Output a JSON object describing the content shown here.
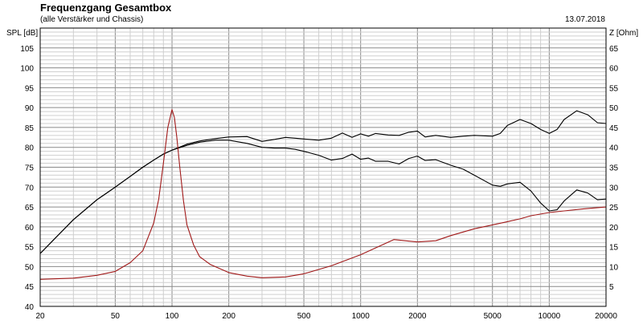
{
  "chart_data": {
    "type": "line",
    "title": "Frequenzgang Gesamtbox",
    "subtitle": "(alle Verstärker und Chassis)",
    "date": "13.07.2018",
    "ylabel": "SPL [dB]",
    "y2label": "Z [Ohm]",
    "x_scale": "log",
    "xlim": [
      20,
      20000
    ],
    "ylim": [
      40,
      110
    ],
    "y2lim": [
      0,
      70
    ],
    "x_ticks": [
      20,
      50,
      100,
      200,
      500,
      1000,
      2000,
      5000,
      10000,
      20000
    ],
    "x_tick_labels": [
      "20",
      "50",
      "100",
      "200",
      "500",
      "1000",
      "2000",
      "5000",
      "10000",
      "20000"
    ],
    "y_ticks": [
      40,
      45,
      50,
      55,
      60,
      65,
      70,
      75,
      80,
      85,
      90,
      95,
      100,
      105
    ],
    "y2_ticks": [
      5,
      10,
      15,
      20,
      25,
      30,
      35,
      40,
      45,
      50,
      55,
      60,
      65
    ],
    "grid": true,
    "colors": {
      "spl": "#000000",
      "impedance": "#a01818"
    },
    "series": [
      {
        "axis": "left",
        "color": "#000000",
        "x": [
          20,
          30,
          40,
          50,
          60,
          70,
          80,
          90,
          100,
          120,
          140,
          170,
          200,
          250,
          300,
          350,
          400,
          450,
          500,
          600,
          700,
          800,
          900,
          1000,
          1100,
          1200,
          1400,
          1600,
          1800,
          2000,
          2200,
          2500,
          3000,
          3500,
          4000,
          5000,
          5500,
          6000,
          7000,
          8000,
          9000,
          10000,
          11000,
          12000,
          14000,
          16000,
          18000,
          20000
        ],
        "y": [
          53.3,
          61.8,
          66.8,
          70.0,
          72.7,
          75.0,
          76.8,
          78.3,
          79.3,
          80.8,
          81.6,
          82.2,
          82.6,
          82.7,
          81.5,
          82.0,
          82.5,
          82.3,
          82.1,
          81.8,
          82.3,
          83.6,
          82.5,
          83.4,
          82.8,
          83.5,
          83.1,
          83.0,
          83.8,
          84.1,
          82.6,
          83.0,
          82.5,
          82.8,
          83.0,
          82.8,
          83.5,
          85.5,
          87.0,
          86.0,
          84.5,
          83.5,
          84.5,
          87.0,
          89.2,
          88.2,
          86.2,
          86.0
        ]
      },
      {
        "axis": "left",
        "color": "#000000",
        "x": [
          20,
          30,
          40,
          50,
          60,
          70,
          80,
          90,
          100,
          120,
          140,
          170,
          200,
          250,
          300,
          350,
          400,
          450,
          500,
          600,
          700,
          800,
          900,
          1000,
          1100,
          1200,
          1400,
          1600,
          1800,
          2000,
          2200,
          2500,
          3000,
          3500,
          4000,
          5000,
          5500,
          6000,
          7000,
          8000,
          9000,
          10000,
          11000,
          12000,
          14000,
          16000,
          18000,
          20000
        ],
        "y": [
          53.3,
          61.8,
          66.8,
          70.0,
          72.7,
          75.0,
          76.8,
          78.3,
          79.3,
          80.5,
          81.3,
          81.8,
          81.8,
          81.0,
          80.0,
          79.8,
          79.8,
          79.5,
          79.0,
          78.0,
          76.8,
          77.2,
          78.3,
          77.0,
          77.3,
          76.5,
          76.5,
          75.8,
          77.2,
          77.8,
          76.7,
          76.9,
          75.5,
          74.5,
          73.0,
          70.5,
          70.2,
          70.8,
          71.2,
          69.0,
          66.0,
          64.0,
          64.3,
          66.5,
          69.3,
          68.5,
          66.8,
          67.0
        ]
      },
      {
        "axis": "right",
        "color": "#a01818",
        "x": [
          20,
          30,
          40,
          50,
          60,
          70,
          80,
          85,
          90,
          95,
          100,
          103,
          106,
          110,
          115,
          120,
          130,
          140,
          160,
          200,
          250,
          300,
          400,
          500,
          700,
          1000,
          1500,
          2000,
          2500,
          3000,
          4000,
          5000,
          6000,
          7000,
          8000,
          10000,
          12000,
          15000,
          20000
        ],
        "y": [
          6.8,
          7.1,
          7.8,
          8.8,
          11.0,
          14.0,
          21.0,
          27.0,
          36.0,
          45.0,
          49.5,
          47.5,
          42.5,
          35.0,
          26.5,
          20.5,
          15.5,
          12.5,
          10.5,
          8.5,
          7.6,
          7.2,
          7.4,
          8.2,
          10.2,
          13.0,
          16.8,
          16.2,
          16.5,
          17.8,
          19.5,
          20.5,
          21.3,
          22.0,
          22.8,
          23.6,
          24.0,
          24.5,
          25.0
        ]
      }
    ]
  }
}
